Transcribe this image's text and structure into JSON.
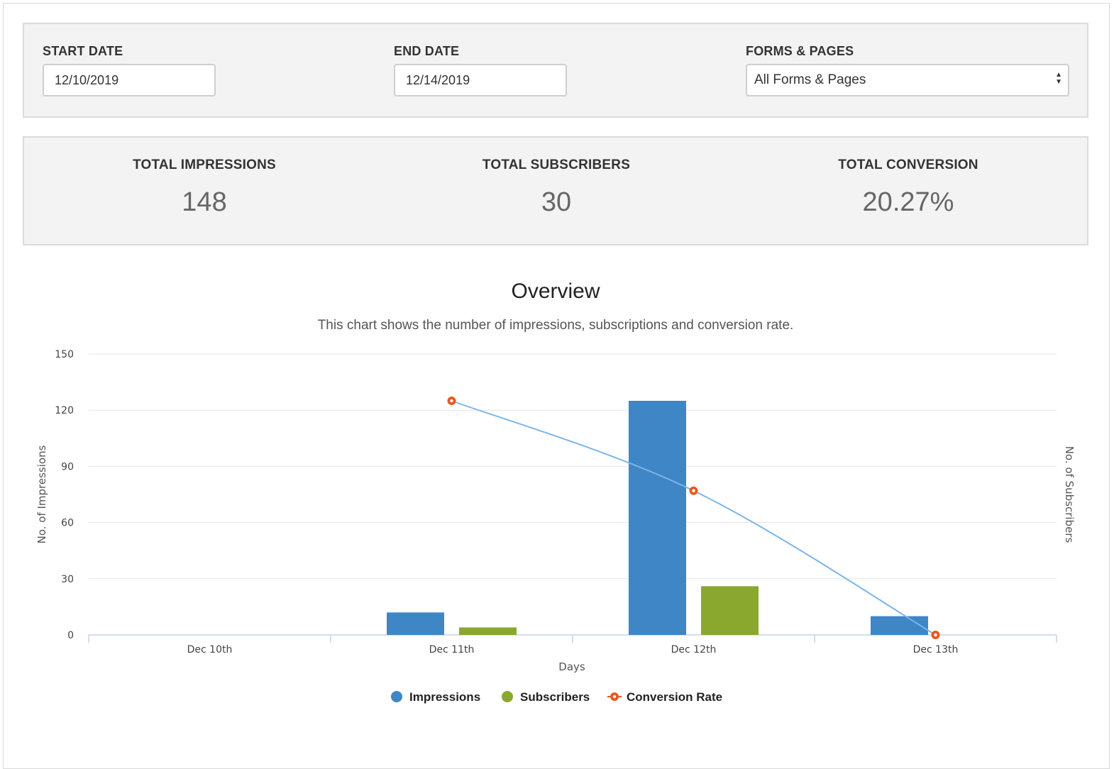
{
  "filters": {
    "start_date": {
      "label": "START DATE",
      "value": "12/10/2019"
    },
    "end_date": {
      "label": "END DATE",
      "value": "12/14/2019"
    },
    "forms_pages": {
      "label": "FORMS & PAGES",
      "selected": "All Forms & Pages"
    }
  },
  "stats": {
    "impressions": {
      "label": "TOTAL IMPRESSIONS",
      "value": "148"
    },
    "subscribers": {
      "label": "TOTAL SUBSCRIBERS",
      "value": "30"
    },
    "conversion": {
      "label": "TOTAL CONVERSION",
      "value": "20.27%"
    }
  },
  "chart_data": {
    "type": "bar",
    "title": "Overview",
    "subtitle": "This chart shows the number of impressions, subscriptions and conversion rate.",
    "xlabel": "Days",
    "ylabel": "No. of Impressions",
    "ylabel_right": "No. of Subscribers",
    "categories": [
      "Dec 10th",
      "Dec 11th",
      "Dec 12th",
      "Dec 13th"
    ],
    "ylim": [
      0,
      150
    ],
    "yticks": [
      0,
      30,
      60,
      90,
      120,
      150
    ],
    "grid": true,
    "legend_placement": "bottom-center",
    "series": [
      {
        "name": "Impressions",
        "kind": "bar",
        "color": "#3f86c6",
        "values": [
          0,
          12,
          125,
          10
        ]
      },
      {
        "name": "Subscribers",
        "kind": "bar",
        "color": "#8aa82e",
        "values": [
          0,
          4,
          26,
          0
        ]
      },
      {
        "name": "Conversion Rate",
        "kind": "line",
        "color": "#e8591d",
        "line_color": "#7db5e8",
        "values": [
          null,
          125,
          77,
          0
        ]
      }
    ]
  }
}
